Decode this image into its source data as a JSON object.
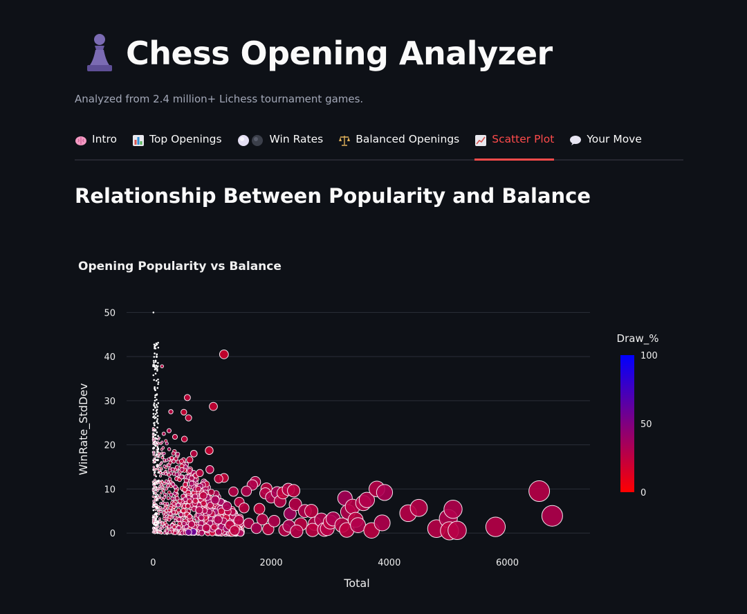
{
  "header": {
    "title": "Chess Opening Analyzer",
    "subtitle": "Analyzed from 2.4 million+ Lichess tournament games."
  },
  "tabs": [
    {
      "label": "Intro",
      "icon": "brain-icon"
    },
    {
      "label": "Top Openings",
      "icon": "bar-chart-icon"
    },
    {
      "label": "Win Rates",
      "icon": "white-black-circles-icon"
    },
    {
      "label": "Balanced Openings",
      "icon": "balance-scale-icon"
    },
    {
      "label": "Scatter Plot",
      "icon": "chart-increasing-icon",
      "active": true
    },
    {
      "label": "Your Move",
      "icon": "speech-bubble-icon"
    }
  ],
  "section": {
    "title": "Relationship Between Popularity and Balance"
  },
  "colors": {
    "background": "#0e1117",
    "accent": "#ff4b4b",
    "grid": "#2b2f38",
    "scale_low": "#ff0000",
    "scale_high": "#0000ff"
  },
  "chart_data": {
    "type": "scatter",
    "title": "Opening Popularity vs Balance",
    "xlabel": "Total",
    "ylabel": "WinRate_StdDev",
    "xlim": [
      -450,
      7400
    ],
    "ylim": [
      -2.5,
      51
    ],
    "xticks": [
      0,
      2000,
      4000,
      6000
    ],
    "yticks": [
      0,
      10,
      20,
      30,
      40,
      50
    ],
    "color_scale": {
      "title": "Draw_%",
      "min": 0,
      "max": 100,
      "ticks": [
        0,
        50,
        100
      ]
    },
    "size_encodes": "Total",
    "points": [
      {
        "x": 1200,
        "y": 40.5,
        "c": 18
      },
      {
        "x": 1020,
        "y": 28.7,
        "c": 20
      },
      {
        "x": 150,
        "y": 37.8,
        "c": 25
      },
      {
        "x": 580,
        "y": 30.7,
        "c": 22
      },
      {
        "x": 520,
        "y": 27.4,
        "c": 20
      },
      {
        "x": 600,
        "y": 26.1,
        "c": 22
      },
      {
        "x": 300,
        "y": 27.5,
        "c": 25
      },
      {
        "x": 950,
        "y": 18.7,
        "c": 20
      },
      {
        "x": 690,
        "y": 18.0,
        "c": 25
      },
      {
        "x": 530,
        "y": 21.3,
        "c": 22
      },
      {
        "x": 370,
        "y": 21.8,
        "c": 24
      },
      {
        "x": 620,
        "y": 16.6,
        "c": 22
      },
      {
        "x": 270,
        "y": 23.2,
        "c": 28
      },
      {
        "x": 180,
        "y": 22.5,
        "c": 30
      },
      {
        "x": 790,
        "y": 13.6,
        "c": 25
      },
      {
        "x": 960,
        "y": 14.4,
        "c": 28
      },
      {
        "x": 1200,
        "y": 12.5,
        "c": 22
      },
      {
        "x": 1110,
        "y": 12.3,
        "c": 24
      },
      {
        "x": 1730,
        "y": 11.6,
        "c": 28
      },
      {
        "x": 1680,
        "y": 10.9,
        "c": 30
      },
      {
        "x": 1920,
        "y": 10.1,
        "c": 25
      },
      {
        "x": 1360,
        "y": 9.4,
        "c": 28
      },
      {
        "x": 1460,
        "y": 7.0,
        "c": 26
      },
      {
        "x": 1050,
        "y": 7.5,
        "c": 35
      },
      {
        "x": 1540,
        "y": 5.7,
        "c": 26
      },
      {
        "x": 1800,
        "y": 5.5,
        "c": 24
      },
      {
        "x": 1900,
        "y": 9.0,
        "c": 28
      },
      {
        "x": 2000,
        "y": 8.1,
        "c": 30
      },
      {
        "x": 2100,
        "y": 9.2,
        "c": 33
      },
      {
        "x": 2150,
        "y": 7.2,
        "c": 28
      },
      {
        "x": 2200,
        "y": 9.1,
        "c": 24
      },
      {
        "x": 2290,
        "y": 9.9,
        "c": 28
      },
      {
        "x": 2320,
        "y": 4.4,
        "c": 36
      },
      {
        "x": 2380,
        "y": 9.6,
        "c": 26
      },
      {
        "x": 2410,
        "y": 6.5,
        "c": 28
      },
      {
        "x": 2500,
        "y": 2.0,
        "c": 26
      },
      {
        "x": 2570,
        "y": 5.0,
        "c": 30
      },
      {
        "x": 2680,
        "y": 5.0,
        "c": 26
      },
      {
        "x": 2740,
        "y": 2.1,
        "c": 28
      },
      {
        "x": 2700,
        "y": 0.7,
        "c": 26
      },
      {
        "x": 2850,
        "y": 3.0,
        "c": 30
      },
      {
        "x": 2900,
        "y": 0.8,
        "c": 28
      },
      {
        "x": 2950,
        "y": 1.0,
        "c": 28
      },
      {
        "x": 3000,
        "y": 2.5,
        "c": 26
      },
      {
        "x": 3050,
        "y": 3.2,
        "c": 32
      },
      {
        "x": 3200,
        "y": 1.8,
        "c": 28
      },
      {
        "x": 3250,
        "y": 7.9,
        "c": 34
      },
      {
        "x": 3300,
        "y": 4.8,
        "c": 30
      },
      {
        "x": 3280,
        "y": 0.7,
        "c": 26
      },
      {
        "x": 3380,
        "y": 6.0,
        "c": 28
      },
      {
        "x": 3430,
        "y": 3.0,
        "c": 26
      },
      {
        "x": 3470,
        "y": 1.8,
        "c": 30
      },
      {
        "x": 3560,
        "y": 6.8,
        "c": 28
      },
      {
        "x": 3620,
        "y": 7.5,
        "c": 30
      },
      {
        "x": 3700,
        "y": 0.6,
        "c": 26
      },
      {
        "x": 3790,
        "y": 10.0,
        "c": 28
      },
      {
        "x": 3880,
        "y": 2.3,
        "c": 30
      },
      {
        "x": 3920,
        "y": 9.2,
        "c": 32
      },
      {
        "x": 4320,
        "y": 4.5,
        "c": 28
      },
      {
        "x": 4500,
        "y": 5.7,
        "c": 28
      },
      {
        "x": 4800,
        "y": 1.0,
        "c": 28
      },
      {
        "x": 5000,
        "y": 3.3,
        "c": 30
      },
      {
        "x": 5020,
        "y": 0.5,
        "c": 26
      },
      {
        "x": 5080,
        "y": 5.4,
        "c": 30
      },
      {
        "x": 5150,
        "y": 0.6,
        "c": 28
      },
      {
        "x": 5800,
        "y": 1.4,
        "c": 28
      },
      {
        "x": 6540,
        "y": 9.5,
        "c": 28
      },
      {
        "x": 6760,
        "y": 3.9,
        "c": 30
      },
      {
        "x": 1450,
        "y": 2.9,
        "c": 28
      },
      {
        "x": 1620,
        "y": 2.2,
        "c": 30
      },
      {
        "x": 1750,
        "y": 1.1,
        "c": 32
      },
      {
        "x": 1850,
        "y": 3.1,
        "c": 28
      },
      {
        "x": 1950,
        "y": 0.9,
        "c": 26
      },
      {
        "x": 2050,
        "y": 2.7,
        "c": 30
      },
      {
        "x": 2230,
        "y": 0.7,
        "c": 28
      },
      {
        "x": 2300,
        "y": 1.6,
        "c": 32
      },
      {
        "x": 2430,
        "y": 0.4,
        "c": 28
      },
      {
        "x": 1300,
        "y": 1.8,
        "c": 26
      },
      {
        "x": 1100,
        "y": 3.0,
        "c": 32
      },
      {
        "x": 900,
        "y": 1.2,
        "c": 28
      },
      {
        "x": 780,
        "y": 5.2,
        "c": 30
      },
      {
        "x": 650,
        "y": 2.0,
        "c": 30
      },
      {
        "x": 850,
        "y": 8.5,
        "c": 26
      },
      {
        "x": 1580,
        "y": 9.5,
        "c": 30
      },
      {
        "x": 1250,
        "y": 6.1,
        "c": 34
      },
      {
        "x": 1380,
        "y": 0.6,
        "c": 26
      },
      {
        "x": 680,
        "y": 0.3,
        "c": 60
      },
      {
        "x": 600,
        "y": 0.2,
        "c": 55
      }
    ]
  }
}
